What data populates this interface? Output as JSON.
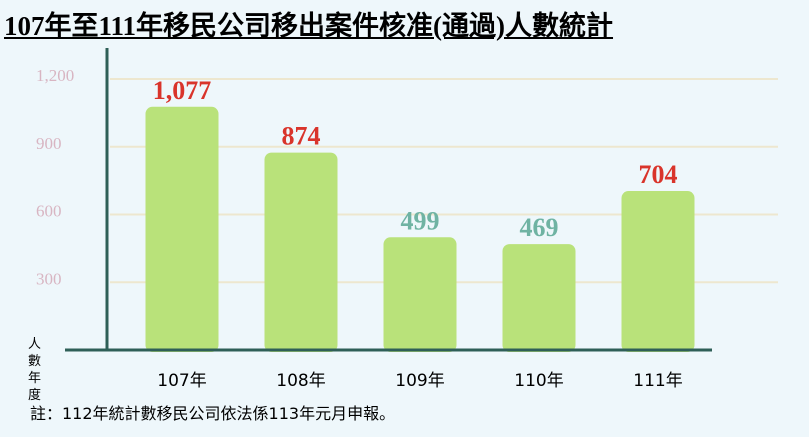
{
  "title": "107年至111年移民公司移出案件核准(通過)人數統計",
  "footnote": "註：112年統計數移民公司依法係113年元月申報。",
  "colors": {
    "background": "#eef7fb",
    "bar": "#b9e27a",
    "axis": "#2e5f57",
    "gridline": "#ede7cf",
    "tick_text": "#d8b5c2",
    "label_high": "#d9342b",
    "label_low": "#6fb3a3"
  },
  "chart_data": {
    "type": "bar",
    "title": "107年至111年移民公司移出案件核准(通過)人數統計",
    "ylabel": "人數",
    "xlabel": "年度",
    "categories": [
      "107年",
      "108年",
      "109年",
      "110年",
      "111年"
    ],
    "values": [
      1077,
      874,
      499,
      469,
      704
    ],
    "data_labels": [
      "1,077",
      "874",
      "499",
      "469",
      "704"
    ],
    "label_color_keys": [
      "label_high",
      "label_high",
      "label_low",
      "label_low",
      "label_high"
    ],
    "ylim": [
      0,
      1200
    ],
    "yticks": [
      300,
      600,
      900,
      1200
    ],
    "ytick_labels": [
      "300",
      "600",
      "900",
      "1,200"
    ],
    "grid": true,
    "legend": "none"
  }
}
